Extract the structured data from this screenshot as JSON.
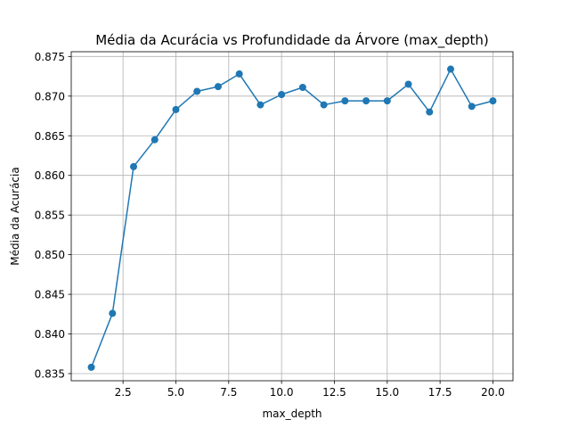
{
  "chart_data": {
    "type": "line",
    "title": "Média da Acurácia vs Profundidade da Árvore (max_depth)",
    "xlabel": "max_depth",
    "ylabel": "Média da Acurácia",
    "xlim": [
      0.05,
      20.95
    ],
    "ylim": [
      0.8341,
      0.8756
    ],
    "xticks": [
      2.5,
      5.0,
      7.5,
      10.0,
      12.5,
      15.0,
      17.5,
      20.0
    ],
    "xtick_labels": [
      "2.5",
      "5.0",
      "7.5",
      "10.0",
      "12.5",
      "15.0",
      "17.5",
      "20.0"
    ],
    "yticks": [
      0.835,
      0.84,
      0.845,
      0.85,
      0.855,
      0.86,
      0.865,
      0.87,
      0.875
    ],
    "ytick_labels": [
      "0.835",
      "0.840",
      "0.845",
      "0.850",
      "0.855",
      "0.860",
      "0.865",
      "0.870",
      "0.875"
    ],
    "grid": true,
    "line_color": "#1f77b4",
    "marker": "circle",
    "series": [
      {
        "x": [
          1,
          2,
          3,
          4,
          5,
          6,
          7,
          8,
          9,
          10,
          11,
          12,
          13,
          14,
          15,
          16,
          17,
          18,
          19,
          20
        ],
        "values": [
          0.8358,
          0.8426,
          0.8611,
          0.8645,
          0.8683,
          0.8706,
          0.8712,
          0.8728,
          0.8689,
          0.8702,
          0.8711,
          0.8689,
          0.8694,
          0.8694,
          0.8694,
          0.8715,
          0.868,
          0.8734,
          0.8687,
          0.8694
        ]
      }
    ]
  }
}
